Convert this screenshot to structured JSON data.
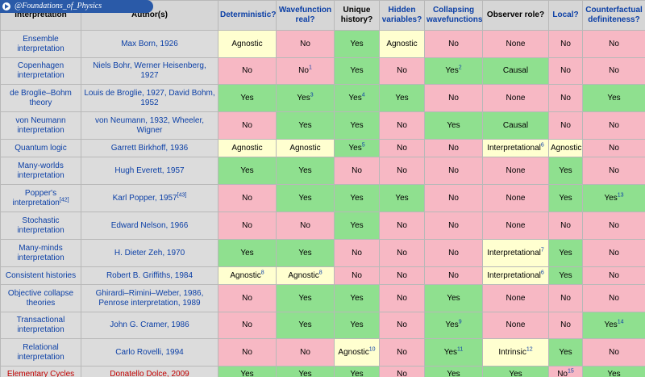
{
  "watermark": "@Foundations_of_Physics",
  "headers": [
    "Interpretation",
    "Author(s)",
    "Deterministic?",
    "Wavefunction real?",
    "Unique history?",
    "Hidden variables?",
    "Collapsing wavefunctions?",
    "Observer role?",
    "Local?",
    "Counterfactual definiteness?"
  ],
  "rows": [
    {
      "name": "Ensemble interpretation",
      "author": "Max Born, 1926",
      "cells": [
        [
          "Agnostic",
          "",
          ""
        ],
        [
          "No",
          "",
          ""
        ],
        [
          "Yes",
          "",
          ""
        ],
        [
          "Agnostic",
          "",
          ""
        ],
        [
          "No",
          "",
          ""
        ],
        [
          "None",
          "",
          ""
        ],
        [
          "No",
          "",
          ""
        ],
        [
          "No",
          "",
          ""
        ]
      ]
    },
    {
      "name": "Copenhagen interpretation",
      "author": "Niels Bohr, Werner Heisenberg, 1927",
      "cells": [
        [
          "No",
          "",
          ""
        ],
        [
          "No",
          "1",
          ""
        ],
        [
          "Yes",
          "",
          ""
        ],
        [
          "No",
          "",
          ""
        ],
        [
          "Yes",
          "2",
          ""
        ],
        [
          "Causal",
          "",
          ""
        ],
        [
          "No",
          "",
          ""
        ],
        [
          "No",
          "",
          ""
        ]
      ]
    },
    {
      "name": "de Broglie–Bohm theory",
      "author": "Louis de Broglie, 1927, David Bohm, 1952",
      "cells": [
        [
          "Yes",
          "",
          ""
        ],
        [
          "Yes",
          "3",
          ""
        ],
        [
          "Yes",
          "4",
          ""
        ],
        [
          "Yes",
          "",
          ""
        ],
        [
          "No",
          "",
          ""
        ],
        [
          "None",
          "",
          ""
        ],
        [
          "No",
          "",
          ""
        ],
        [
          "Yes",
          "",
          ""
        ]
      ]
    },
    {
      "name": "von Neumann interpretation",
      "author": "von Neumann, 1932, Wheeler, Wigner",
      "cells": [
        [
          "No",
          "",
          ""
        ],
        [
          "Yes",
          "",
          ""
        ],
        [
          "Yes",
          "",
          ""
        ],
        [
          "No",
          "",
          ""
        ],
        [
          "Yes",
          "",
          ""
        ],
        [
          "Causal",
          "",
          ""
        ],
        [
          "No",
          "",
          ""
        ],
        [
          "No",
          "",
          ""
        ]
      ]
    },
    {
      "name": "Quantum logic",
      "author": "Garrett Birkhoff, 1936",
      "cells": [
        [
          "Agnostic",
          "",
          ""
        ],
        [
          "Agnostic",
          "",
          ""
        ],
        [
          "Yes",
          "5",
          ""
        ],
        [
          "No",
          "",
          ""
        ],
        [
          "No",
          "",
          ""
        ],
        [
          "Interpretational",
          "6",
          ""
        ],
        [
          "Agnostic",
          "",
          ""
        ],
        [
          "No",
          "",
          ""
        ]
      ]
    },
    {
      "name": "Many-worlds interpretation",
      "author": "Hugh Everett, 1957",
      "cells": [
        [
          "Yes",
          "",
          ""
        ],
        [
          "Yes",
          "",
          ""
        ],
        [
          "No",
          "",
          ""
        ],
        [
          "No",
          "",
          ""
        ],
        [
          "No",
          "",
          ""
        ],
        [
          "None",
          "",
          ""
        ],
        [
          "Yes",
          "",
          ""
        ],
        [
          "No",
          "",
          ""
        ]
      ]
    },
    {
      "name": "Popper's interpretation",
      "name_sup": "[42]",
      "author": "Karl Popper, 1957",
      "author_sup": "[43]",
      "cells": [
        [
          "No",
          "",
          ""
        ],
        [
          "Yes",
          "",
          ""
        ],
        [
          "Yes",
          "",
          ""
        ],
        [
          "Yes",
          "",
          ""
        ],
        [
          "No",
          "",
          ""
        ],
        [
          "None",
          "",
          ""
        ],
        [
          "Yes",
          "",
          ""
        ],
        [
          "Yes",
          "13",
          ""
        ]
      ]
    },
    {
      "name": "Stochastic interpretation",
      "author": "Edward Nelson, 1966",
      "cells": [
        [
          "No",
          "",
          ""
        ],
        [
          "No",
          "",
          ""
        ],
        [
          "Yes",
          "",
          ""
        ],
        [
          "No",
          "",
          ""
        ],
        [
          "No",
          "",
          ""
        ],
        [
          "None",
          "",
          ""
        ],
        [
          "No",
          "",
          ""
        ],
        [
          "No",
          "",
          ""
        ]
      ]
    },
    {
      "name": "Many-minds interpretation",
      "author": "H. Dieter Zeh, 1970",
      "cells": [
        [
          "Yes",
          "",
          ""
        ],
        [
          "Yes",
          "",
          ""
        ],
        [
          "No",
          "",
          ""
        ],
        [
          "No",
          "",
          ""
        ],
        [
          "No",
          "",
          ""
        ],
        [
          "Interpretational",
          "7",
          ""
        ],
        [
          "Yes",
          "",
          ""
        ],
        [
          "No",
          "",
          ""
        ]
      ]
    },
    {
      "name": "Consistent histories",
      "author": "Robert B. Griffiths, 1984",
      "cells": [
        [
          "Agnostic",
          "8",
          ""
        ],
        [
          "Agnostic",
          "8",
          ""
        ],
        [
          "No",
          "",
          ""
        ],
        [
          "No",
          "",
          ""
        ],
        [
          "No",
          "",
          ""
        ],
        [
          "Interpretational",
          "6",
          ""
        ],
        [
          "Yes",
          "",
          ""
        ],
        [
          "No",
          "",
          ""
        ]
      ]
    },
    {
      "name": "Objective collapse theories",
      "author": "Ghirardi–Rimini–Weber, 1986, Penrose interpretation, 1989",
      "cells": [
        [
          "No",
          "",
          ""
        ],
        [
          "Yes",
          "",
          ""
        ],
        [
          "Yes",
          "",
          ""
        ],
        [
          "No",
          "",
          ""
        ],
        [
          "Yes",
          "",
          ""
        ],
        [
          "None",
          "",
          ""
        ],
        [
          "No",
          "",
          ""
        ],
        [
          "No",
          "",
          ""
        ]
      ]
    },
    {
      "name": "Transactional interpretation",
      "author": "John G. Cramer, 1986",
      "cells": [
        [
          "No",
          "",
          ""
        ],
        [
          "Yes",
          "",
          ""
        ],
        [
          "Yes",
          "",
          ""
        ],
        [
          "No",
          "",
          ""
        ],
        [
          "Yes",
          "9",
          ""
        ],
        [
          "None",
          "",
          ""
        ],
        [
          "No",
          "",
          ""
        ],
        [
          "Yes",
          "14",
          ""
        ]
      ]
    },
    {
      "name": "Relational interpretation",
      "author": "Carlo Rovelli, 1994",
      "cells": [
        [
          "No",
          "",
          ""
        ],
        [
          "No",
          "",
          ""
        ],
        [
          "Agnostic",
          "10",
          ""
        ],
        [
          "No",
          "",
          ""
        ],
        [
          "Yes",
          "11",
          ""
        ],
        [
          "Intrinsic",
          "12",
          ""
        ],
        [
          "Yes",
          "",
          ""
        ],
        [
          "No",
          "",
          ""
        ]
      ]
    },
    {
      "name": "Elementary Cycles",
      "author": "Donatello Dolce, 2009",
      "highlight": true,
      "cells": [
        [
          "Yes",
          "",
          ""
        ],
        [
          "Yes",
          "",
          ""
        ],
        [
          "Yes",
          "",
          ""
        ],
        [
          "No",
          "",
          ""
        ],
        [
          "Yes",
          "",
          ""
        ],
        [
          "Yes",
          "",
          ""
        ],
        [
          "No",
          "15",
          ""
        ],
        [
          "Yes",
          "",
          ""
        ]
      ]
    }
  ]
}
